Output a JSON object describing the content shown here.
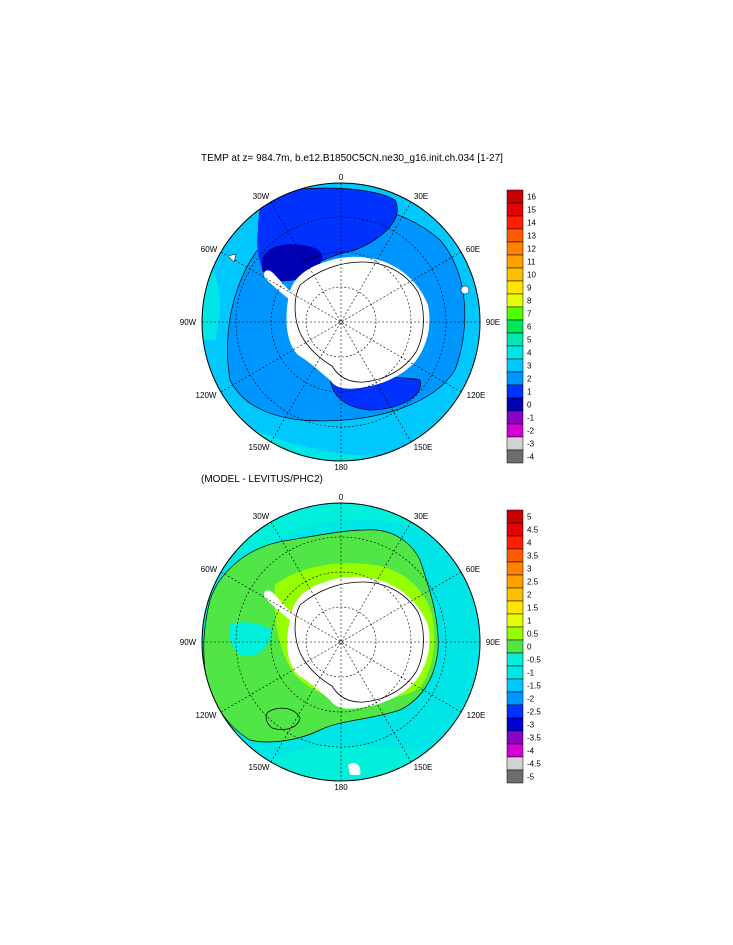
{
  "panels": [
    {
      "title": "TEMP at z= 984.7m, b.e12.B1850C5CN.ne30_g16.init.ch.034 [1-27]",
      "longitude_labels": [
        "0",
        "30E",
        "60E",
        "90E",
        "120E",
        "150E",
        "180",
        "150W",
        "120W",
        "90W",
        "60W",
        "30W"
      ],
      "colorbar": {
        "labels": [
          "16",
          "15",
          "14",
          "13",
          "12",
          "11",
          "10",
          "9",
          "8",
          "7",
          "6",
          "5",
          "4",
          "3",
          "2",
          "1",
          "0",
          "-1",
          "-2",
          "-3",
          "-4"
        ],
        "colors": [
          "#c80000",
          "#e60000",
          "#ff1e00",
          "#ff5a00",
          "#ff8200",
          "#ffa000",
          "#ffbe00",
          "#ffe600",
          "#e6ff00",
          "#50ff00",
          "#00e65a",
          "#00e6b4",
          "#00e6e6",
          "#00c8ff",
          "#0096ff",
          "#0032ff",
          "#0000b4",
          "#8c00c8",
          "#d200d2",
          "#d2d2d2",
          "#6e6e6e"
        ]
      }
    },
    {
      "title": "(MODEL - LEVITUS/PHC2)",
      "longitude_labels": [
        "0",
        "30E",
        "60E",
        "90E",
        "120E",
        "150E",
        "180",
        "150W",
        "120W",
        "90W",
        "60W",
        "30W"
      ],
      "colorbar": {
        "labels": [
          "5",
          "4.5",
          "4",
          "3.5",
          "3",
          "2.5",
          "2",
          "1.5",
          "1",
          "0.5",
          "0",
          "-0.5",
          "-1",
          "-1.5",
          "-2",
          "-2.5",
          "-3",
          "-3.5",
          "-4",
          "-4.5",
          "-5"
        ],
        "colors": [
          "#c80000",
          "#e60000",
          "#ff1e00",
          "#ff5a00",
          "#ff8200",
          "#ffa000",
          "#ffbe00",
          "#ffe600",
          "#e6ff00",
          "#96ff00",
          "#50e646",
          "#00f0dc",
          "#00e6e6",
          "#00c8ff",
          "#0096ff",
          "#0032ff",
          "#0000d2",
          "#8c00c8",
          "#d200d2",
          "#d2d2d2",
          "#6e6e6e"
        ]
      }
    }
  ]
}
